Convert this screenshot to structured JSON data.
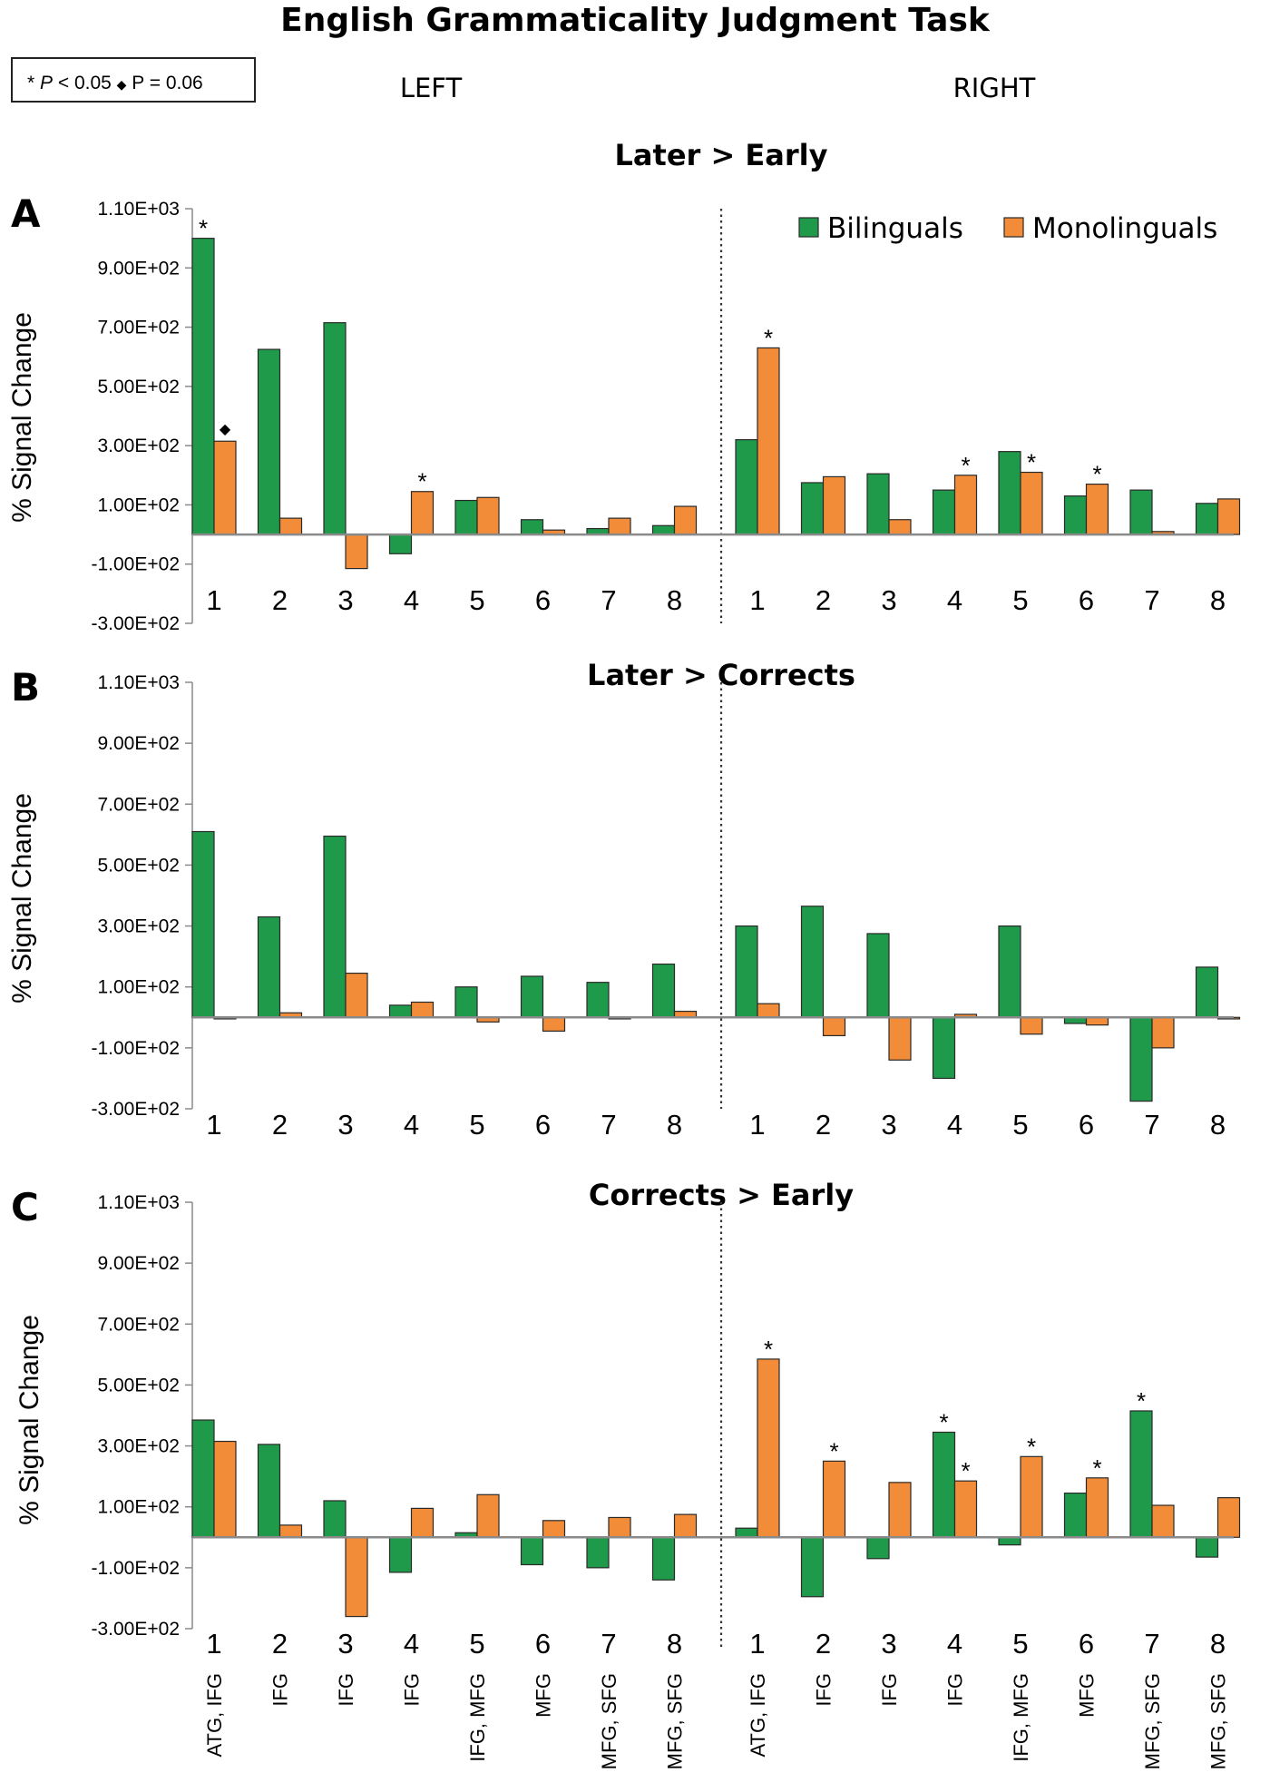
{
  "figure_title": "English Grammaticality Judgment Task",
  "significance_key": {
    "star": "* ",
    "p_italic": "P",
    "star_rest": " < 0.05 ",
    "diamond": "◆",
    "diamond_rest": " P = 0.06"
  },
  "sides": [
    "LEFT",
    "RIGHT"
  ],
  "colors": {
    "bilinguals": "#1f9a4a",
    "monolinguals": "#f28c38",
    "axis": "#8a8a8a",
    "stroke": "#2a2a2a"
  },
  "chart_data": [
    {
      "type": "bar",
      "panel_letter": "A",
      "title": "Later > Early",
      "ylabel": "% Signal Change",
      "ylim": [
        -300,
        1100
      ],
      "yticks": [
        1100,
        900,
        700,
        500,
        300,
        100,
        -100,
        -300
      ],
      "ytick_labels": [
        "1.10E+03",
        "9.00E+02",
        "7.00E+02",
        "5.00E+02",
        "3.00E+02",
        "1.00E+02",
        "-1.00E+02",
        "-3.00E+02"
      ],
      "categories": [
        "1",
        "2",
        "3",
        "4",
        "5",
        "6",
        "7",
        "8",
        "1",
        "2",
        "3",
        "4",
        "5",
        "6",
        "7",
        "8"
      ],
      "legend": {
        "placement": "top-right",
        "entries": [
          "Bilinguals",
          "Monolinguals"
        ]
      },
      "series": [
        {
          "name": "Bilinguals",
          "values": [
            1000,
            625,
            715,
            -65,
            115,
            50,
            20,
            30,
            320,
            175,
            205,
            150,
            280,
            130,
            150,
            105
          ]
        },
        {
          "name": "Monolinguals",
          "values": [
            315,
            55,
            -115,
            145,
            125,
            15,
            55,
            95,
            630,
            195,
            50,
            200,
            210,
            170,
            10,
            120
          ]
        }
      ],
      "annotations": [
        {
          "series": 0,
          "index": 0,
          "mark": "*"
        },
        {
          "series": 1,
          "index": 0,
          "mark": "◆"
        },
        {
          "series": 1,
          "index": 3,
          "mark": "*"
        },
        {
          "series": 1,
          "index": 8,
          "mark": "*"
        },
        {
          "series": 1,
          "index": 11,
          "mark": "*"
        },
        {
          "series": 1,
          "index": 12,
          "mark": "*"
        },
        {
          "series": 1,
          "index": 13,
          "mark": "*"
        }
      ]
    },
    {
      "type": "bar",
      "panel_letter": "B",
      "title": "Later > Corrects",
      "ylabel": "% Signal Change",
      "ylim": [
        -300,
        1100
      ],
      "yticks": [
        1100,
        900,
        700,
        500,
        300,
        100,
        -100,
        -300
      ],
      "ytick_labels": [
        "1.10E+03",
        "9.00E+02",
        "7.00E+02",
        "5.00E+02",
        "3.00E+02",
        "1.00E+02",
        "-1.00E+02",
        "-3.00E+02"
      ],
      "categories": [
        "1",
        "2",
        "3",
        "4",
        "5",
        "6",
        "7",
        "8",
        "1",
        "2",
        "3",
        "4",
        "5",
        "6",
        "7",
        "8"
      ],
      "series": [
        {
          "name": "Bilinguals",
          "values": [
            610,
            330,
            595,
            40,
            100,
            135,
            115,
            175,
            300,
            365,
            275,
            -200,
            300,
            -20,
            -275,
            165
          ]
        },
        {
          "name": "Monolinguals",
          "values": [
            -5,
            15,
            145,
            50,
            -15,
            -45,
            -5,
            20,
            45,
            -60,
            -140,
            10,
            -55,
            -25,
            -100,
            -5
          ]
        }
      ],
      "annotations": []
    },
    {
      "type": "bar",
      "panel_letter": "C",
      "title": "Corrects > Early",
      "ylabel": "% Signal Change",
      "ylim": [
        -300,
        1100
      ],
      "yticks": [
        1100,
        900,
        700,
        500,
        300,
        100,
        -100,
        -300
      ],
      "ytick_labels": [
        "1.10E+03",
        "9.00E+02",
        "7.00E+02",
        "5.00E+02",
        "3.00E+02",
        "1.00E+02",
        "-1.00E+02",
        "-3.00E+02"
      ],
      "categories": [
        "1",
        "2",
        "3",
        "4",
        "5",
        "6",
        "7",
        "8",
        "1",
        "2",
        "3",
        "4",
        "5",
        "6",
        "7",
        "8"
      ],
      "region_labels": [
        "ATG, IFG",
        "IFG",
        "IFG",
        "IFG",
        "IFG, MFG",
        "MFG",
        "MFG, SFG",
        "MFG, SFG",
        "ATG, IFG",
        "IFG",
        "IFG",
        "IFG",
        "IFG, MFG",
        "MFG",
        "MFG, SFG",
        "MFG, SFG"
      ],
      "series": [
        {
          "name": "Bilinguals",
          "values": [
            385,
            305,
            120,
            -115,
            15,
            -90,
            -100,
            -140,
            30,
            -195,
            -70,
            345,
            -25,
            145,
            415,
            -65
          ]
        },
        {
          "name": "Monolinguals",
          "values": [
            315,
            40,
            -260,
            95,
            140,
            55,
            65,
            75,
            585,
            250,
            180,
            185,
            265,
            195,
            105,
            130
          ]
        }
      ],
      "annotations": [
        {
          "series": 1,
          "index": 8,
          "mark": "*"
        },
        {
          "series": 1,
          "index": 9,
          "mark": "*"
        },
        {
          "series": 0,
          "index": 11,
          "mark": "*"
        },
        {
          "series": 1,
          "index": 11,
          "mark": "*"
        },
        {
          "series": 1,
          "index": 12,
          "mark": "*"
        },
        {
          "series": 1,
          "index": 13,
          "mark": "*"
        },
        {
          "series": 0,
          "index": 14,
          "mark": "*"
        }
      ]
    }
  ]
}
